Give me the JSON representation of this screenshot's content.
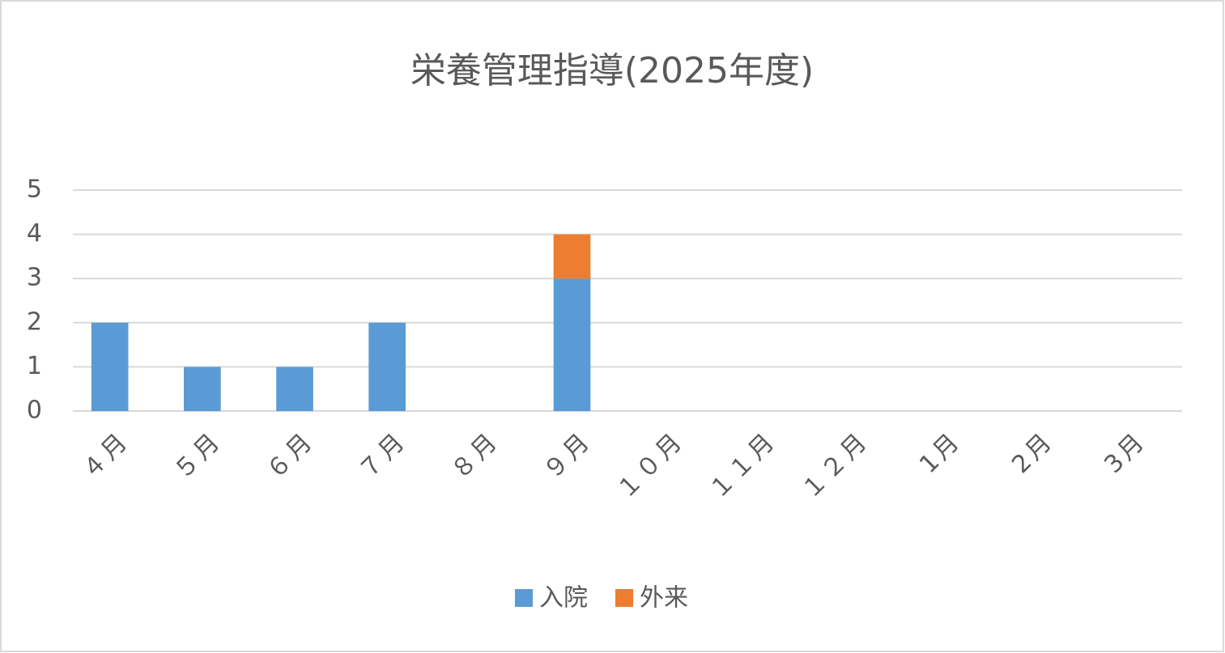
{
  "chart_data": {
    "type": "stacked_bar",
    "title": "栄養管理指導(2025年度)",
    "categories": [
      "４月",
      "５月",
      "６月",
      "７月",
      "８月",
      "９月",
      "１０月",
      "１１月",
      "１２月",
      "1月",
      "2月",
      "3月"
    ],
    "series": [
      {
        "name": "入院",
        "color": "#5b9bd5",
        "values": [
          2,
          1,
          1,
          2,
          0,
          3,
          0,
          0,
          0,
          0,
          0,
          0
        ]
      },
      {
        "name": "外来",
        "color": "#ed7d31",
        "values": [
          0,
          0,
          0,
          0,
          0,
          1,
          0,
          0,
          0,
          0,
          0,
          0
        ]
      }
    ],
    "ylim": [
      0,
      5
    ],
    "yticks": [
      0,
      1,
      2,
      3,
      4,
      5
    ],
    "grid": true,
    "legend": "bottom"
  }
}
